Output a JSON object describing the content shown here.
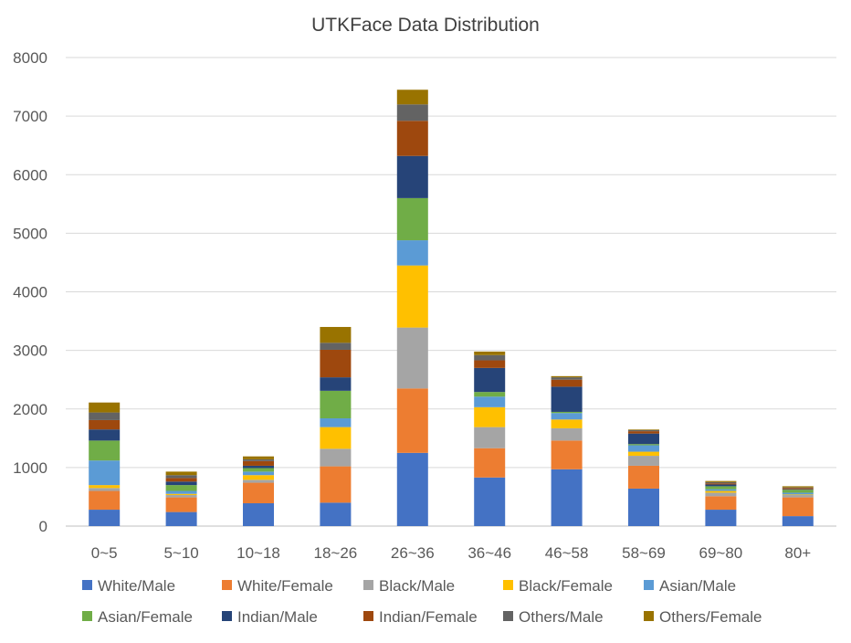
{
  "chart_data": {
    "type": "bar",
    "stacked": true,
    "title": "UTKFace Data Distribution",
    "xlabel": "",
    "ylabel": "",
    "ylim": [
      0,
      8000
    ],
    "yticks": [
      0,
      1000,
      2000,
      3000,
      4000,
      5000,
      6000,
      7000,
      8000
    ],
    "grid": true,
    "legend": "bottom",
    "categories": [
      "0~5",
      "5~10",
      "10~18",
      "18~26",
      "26~36",
      "36~46",
      "46~58",
      "58~69",
      "69~80",
      "80+"
    ],
    "series": [
      {
        "name": "White/Male",
        "color": "#4472C4",
        "values": [
          280,
          240,
          390,
          400,
          1250,
          830,
          970,
          640,
          280,
          170
        ]
      },
      {
        "name": "White/Female",
        "color": "#ED7D31",
        "values": [
          320,
          250,
          350,
          620,
          1100,
          500,
          490,
          390,
          230,
          320
        ]
      },
      {
        "name": "Black/Male",
        "color": "#A5A5A5",
        "values": [
          50,
          40,
          50,
          300,
          1040,
          360,
          210,
          170,
          60,
          40
        ]
      },
      {
        "name": "Black/Female",
        "color": "#FFC000",
        "values": [
          50,
          20,
          80,
          370,
          1060,
          340,
          150,
          70,
          30,
          10
        ]
      },
      {
        "name": "Asian/Male",
        "color": "#5B9BD5",
        "values": [
          420,
          50,
          60,
          150,
          430,
          180,
          110,
          110,
          30,
          30
        ]
      },
      {
        "name": "Asian/Female",
        "color": "#70AD47",
        "values": [
          340,
          100,
          60,
          470,
          720,
          80,
          20,
          20,
          50,
          50
        ]
      },
      {
        "name": "Indian/Male",
        "color": "#264478",
        "values": [
          190,
          60,
          40,
          230,
          720,
          410,
          430,
          180,
          30,
          10
        ]
      },
      {
        "name": "Indian/Female",
        "color": "#9E480E",
        "values": [
          160,
          60,
          80,
          470,
          600,
          130,
          120,
          40,
          20,
          20
        ]
      },
      {
        "name": "Others/Male",
        "color": "#636363",
        "values": [
          130,
          50,
          30,
          120,
          280,
          90,
          40,
          20,
          20,
          10
        ]
      },
      {
        "name": "Others/Female",
        "color": "#997300",
        "values": [
          170,
          60,
          50,
          270,
          250,
          60,
          20,
          10,
          20,
          20
        ]
      }
    ]
  }
}
